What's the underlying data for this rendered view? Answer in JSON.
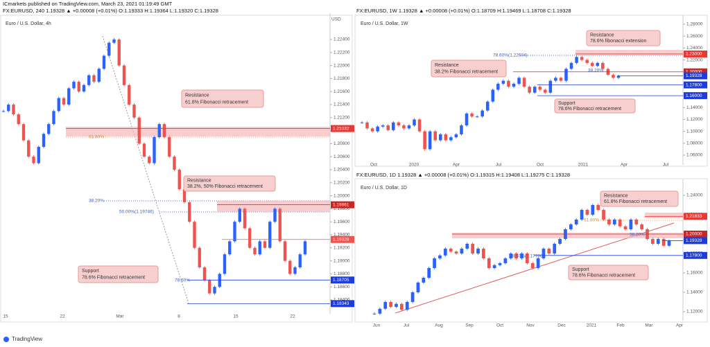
{
  "header": {
    "publisher": "ICmarkets published on TradingView.com, March 23, 2021 01:19:49 GMT"
  },
  "chart_data": [
    {
      "type": "candlestick",
      "title": "FX:EURUSD, 240  1.19328 ▲ +0.00008 (+0.01%)  O:1.19333  H:1.19364  L:1.19320  C:1.19328",
      "subtitle": "Euro / U.S. Dollar, 4h",
      "currency": "USD",
      "ylim": [
        1.18219,
        1.22772
      ],
      "yticks": [
        {
          "value": 1.184,
          "label": "1.18400"
        },
        {
          "value": 1.186,
          "label": "1.18600"
        },
        {
          "value": 1.188,
          "label": "1.18800"
        },
        {
          "value": 1.19,
          "label": "1.19000"
        },
        {
          "value": 1.192,
          "label": "1.19200"
        },
        {
          "value": 1.194,
          "label": "1.19400"
        },
        {
          "value": 1.196,
          "label": "1.19600"
        },
        {
          "value": 1.198,
          "label": "1.19800"
        },
        {
          "value": 1.2,
          "label": "1.20000"
        },
        {
          "value": 1.202,
          "label": "1.20200"
        },
        {
          "value": 1.204,
          "label": "1.20400"
        },
        {
          "value": 1.206,
          "label": "1.20600"
        },
        {
          "value": 1.208,
          "label": "1.20800"
        },
        {
          "value": 1.21,
          "label": "1.21000"
        },
        {
          "value": 1.212,
          "label": "1.21200"
        },
        {
          "value": 1.214,
          "label": "1.21400"
        },
        {
          "value": 1.216,
          "label": "1.21600"
        },
        {
          "value": 1.218,
          "label": "1.21800"
        },
        {
          "value": 1.22,
          "label": "1.22000"
        },
        {
          "value": 1.222,
          "label": "1.22200"
        },
        {
          "value": 1.224,
          "label": "1.22400"
        }
      ],
      "x_labels": [
        "15",
        "22",
        "Mar",
        "8",
        "15",
        "22"
      ],
      "closes": [
        1.213,
        1.214,
        1.2125,
        1.211,
        1.2085,
        1.206,
        1.205,
        1.2075,
        1.2095,
        1.211,
        1.213,
        1.215,
        1.214,
        1.2165,
        1.2175,
        1.216,
        1.217,
        1.2185,
        1.2175,
        1.2195,
        1.2215,
        1.2235,
        1.224,
        1.22,
        1.217,
        1.214,
        1.212,
        1.208,
        1.206,
        1.205,
        1.209,
        1.211,
        1.209,
        1.206,
        1.204,
        1.201,
        1.199,
        1.196,
        1.192,
        1.189,
        1.187,
        1.185,
        1.186,
        1.188,
        1.191,
        1.193,
        1.196,
        1.198,
        1.195,
        1.192,
        1.191,
        1.193,
        1.192,
        1.196,
        1.198,
        1.193,
        1.19,
        1.188,
        1.189,
        1.191,
        1.193
      ],
      "up_color": "#2962ff",
      "down_color": "#ef5350",
      "price_labels": [
        {
          "value": 1.21032,
          "label": "1.21032",
          "color": "#e53935"
        },
        {
          "value": 1.19861,
          "label": "1.19861",
          "color": "#c62828"
        },
        {
          "value": 1.19328,
          "label": "1.19328",
          "color": "#ef5350"
        },
        {
          "value": 1.18705,
          "label": "1.18705",
          "color": "#1e3cd9"
        },
        {
          "value": 1.18343,
          "label": "1.18343",
          "color": "#1e3cd9"
        }
      ],
      "annotations": [
        {
          "title": "Resistance",
          "text": "61.8% Fibonacci retracement"
        },
        {
          "title": "Resistance",
          "text": "38.2%, 50% Fibonacci retracement"
        },
        {
          "title": "Support",
          "text": "78.6% Fibonacci retracement"
        }
      ],
      "fib_labels": [
        "61.80%",
        "38.20%",
        "50.00%(1.19746)",
        "78.60%"
      ]
    },
    {
      "type": "candlestick",
      "title": "FX:EURUSD, 1W  1.19328 ▲ +0.00008 (+0.01%)  O:1.18709  H:1.19469  L:1.18708  C:1.19328",
      "subtitle": "Euro / U.S. Dollar, 1W",
      "ylim": [
        1.04719,
        1.29164
      ],
      "yticks": [
        {
          "value": 1.06,
          "label": "1.06000"
        },
        {
          "value": 1.08,
          "label": "1.08000"
        },
        {
          "value": 1.1,
          "label": "1.10000"
        },
        {
          "value": 1.12,
          "label": "1.12000"
        },
        {
          "value": 1.14,
          "label": "1.14000"
        },
        {
          "value": 1.16,
          "label": "1.16000"
        },
        {
          "value": 1.18,
          "label": "1.18000"
        },
        {
          "value": 1.2,
          "label": "1.20000"
        },
        {
          "value": 1.22,
          "label": "1.22000"
        },
        {
          "value": 1.24,
          "label": "1.24000"
        },
        {
          "value": 1.26,
          "label": "1.26000"
        },
        {
          "value": 1.28,
          "label": "1.28000"
        }
      ],
      "x_labels": [
        "Oct",
        "2020",
        "Apr",
        "Jul",
        "Oct",
        "2021",
        "Apr",
        "Jul"
      ],
      "closes": [
        1.115,
        1.105,
        1.1,
        1.108,
        1.11,
        1.102,
        1.115,
        1.11,
        1.105,
        1.11,
        1.12,
        1.1,
        1.07,
        1.1,
        1.085,
        1.095,
        1.085,
        1.09,
        1.095,
        1.11,
        1.13,
        1.125,
        1.125,
        1.135,
        1.15,
        1.17,
        1.18,
        1.185,
        1.175,
        1.18,
        1.19,
        1.175,
        1.165,
        1.175,
        1.17,
        1.165,
        1.185,
        1.19,
        1.185,
        1.205,
        1.215,
        1.225,
        1.22,
        1.215,
        1.21,
        1.215,
        1.205,
        1.195,
        1.19,
        1.193
      ],
      "up_color": "#2962ff",
      "down_color": "#ef5350",
      "price_labels": [
        {
          "value": 1.23,
          "label": "1.23000",
          "color": "#e53935"
        },
        {
          "value": 1.2,
          "label": "1.20000",
          "color": "#c62828"
        },
        {
          "value": 1.19328,
          "label": "1.19328",
          "color": "#1e3cd9"
        },
        {
          "value": 1.178,
          "label": "1.17800",
          "color": "#1e3cd9"
        },
        {
          "value": 1.16,
          "label": "1.16000",
          "color": "#1e3cd9"
        }
      ],
      "annotations": [
        {
          "title": "Resistance",
          "text": "78.6% fibonacci extension"
        },
        {
          "title": "Resistance",
          "text": "38.2% Fibonacci retracement"
        },
        {
          "title": "Support",
          "text": "78.6% Fibonacci retracement"
        }
      ],
      "fib_labels": [
        "78.60%(1.22604)",
        "38.20%"
      ]
    },
    {
      "type": "candlestick",
      "title": "FX:EURUSD, 1D  1.19328 ▲ +0.00008 (+0.01%)  O:1.19315  H:1.19408  L:1.19275  C:1.19328",
      "subtitle": "Euro / U.S. Dollar, 1D",
      "ylim": [
        1.11286,
        1.25429
      ],
      "yticks": [
        {
          "value": 1.12,
          "label": "1.12000"
        },
        {
          "value": 1.14,
          "label": "1.14000"
        },
        {
          "value": 1.16,
          "label": "1.16000"
        },
        {
          "value": 1.18,
          "label": "1.18000"
        },
        {
          "value": 1.2,
          "label": "1.20000"
        },
        {
          "value": 1.22,
          "label": "1.22000"
        },
        {
          "value": 1.24,
          "label": "1.24000"
        }
      ],
      "x_labels": [
        "Jun",
        "Jul",
        "Aug",
        "Sep",
        "Oct",
        "Nov",
        "Dec",
        "2021",
        "Feb",
        "Mar",
        "Apr"
      ],
      "closes": [
        1.118,
        1.123,
        1.13,
        1.125,
        1.128,
        1.122,
        1.13,
        1.14,
        1.15,
        1.155,
        1.165,
        1.175,
        1.178,
        1.185,
        1.182,
        1.18,
        1.185,
        1.19,
        1.18,
        1.185,
        1.175,
        1.165,
        1.168,
        1.17,
        1.175,
        1.18,
        1.175,
        1.18,
        1.17,
        1.165,
        1.175,
        1.185,
        1.18,
        1.19,
        1.195,
        1.205,
        1.21,
        1.215,
        1.225,
        1.22,
        1.23,
        1.225,
        1.215,
        1.21,
        1.215,
        1.208,
        1.205,
        1.215,
        1.21,
        1.205,
        1.195,
        1.19,
        1.195,
        1.188,
        1.193
      ],
      "up_color": "#2962ff",
      "down_color": "#ef5350",
      "price_labels": [
        {
          "value": 1.21833,
          "label": "1.21833",
          "color": "#e53935"
        },
        {
          "value": 1.2,
          "label": "1.20000",
          "color": "#c62828"
        },
        {
          "value": 1.19328,
          "label": "1.19328",
          "color": "#1e3cd9"
        },
        {
          "value": 1.178,
          "label": "1.17800",
          "color": "#1e3cd9"
        }
      ],
      "annotations": [
        {
          "title": "Resistance",
          "text": "61.8% Fibonacci retracement"
        },
        {
          "title": "Support",
          "text": "78.6% Fibonacci retracement"
        }
      ],
      "fib_labels": [
        "61.80%",
        "38.20%",
        "78.60%(1.17706)"
      ]
    }
  ],
  "footer": {
    "brand": "TradingView"
  }
}
